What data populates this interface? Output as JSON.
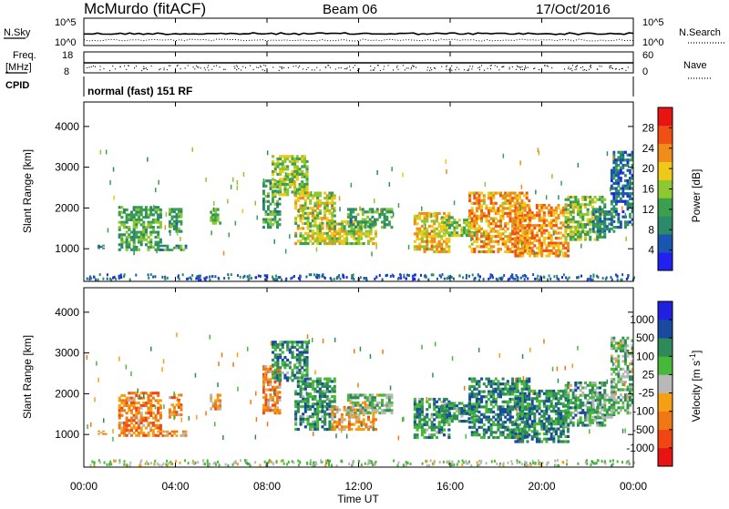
{
  "header": {
    "station": "McMurdo (fitACF)",
    "beam": "Beam 06",
    "date": "17/Oct/2016"
  },
  "noise_panel": {
    "left_label": "N.Sky",
    "right_label": "N.Search",
    "left_ticks": [
      "10^5",
      "10^0"
    ],
    "right_ticks": [
      "10^5",
      "10^0"
    ]
  },
  "freq_panel": {
    "left_label_1": "Freq.",
    "left_label_2": "[MHz]",
    "right_label": "Nave",
    "left_ticks": [
      "18",
      "8"
    ],
    "right_ticks": [
      "60",
      "0"
    ]
  },
  "cpid": {
    "label": "CPID",
    "value": "normal (fast) 151 RF"
  },
  "x_axis": {
    "label": "Time UT",
    "ticks": [
      "00:00",
      "04:00",
      "08:00",
      "12:00",
      "16:00",
      "20:00",
      "00:00"
    ]
  },
  "colors": {
    "power": [
      "#2020f0",
      "#1a55b0",
      "#2a8a6a",
      "#3aa050",
      "#8ec830",
      "#f0c81a",
      "#f08c1a",
      "#f05014",
      "#e81414"
    ],
    "velocity": [
      "#e81414",
      "#f04614",
      "#f07814",
      "#f5a014",
      "#b8b8b8",
      "#48b83a",
      "#2e8a5a",
      "#1a4aa0",
      "#2020e0"
    ]
  },
  "chart_data": [
    {
      "type": "heatmap",
      "name": "power",
      "ylabel": "Slant Range [km]",
      "yticks": [
        1000,
        2000,
        3000,
        4000
      ],
      "ylim": [
        200,
        4600
      ],
      "xlim_hours": [
        0,
        24
      ],
      "colorbar": {
        "label": "Power [dB]",
        "ticks": [
          "4",
          "8",
          "12",
          "16",
          "20",
          "24",
          "28"
        ],
        "range": [
          0,
          32
        ]
      },
      "blobs": [
        {
          "t0": 1.5,
          "t1": 3.4,
          "r0": 950,
          "r1": 2050,
          "level": 0.38
        },
        {
          "t0": 3.2,
          "t1": 4.5,
          "r0": 950,
          "r1": 1100,
          "level": 0.32
        },
        {
          "t0": 3.7,
          "t1": 4.3,
          "r0": 1400,
          "r1": 2000,
          "level": 0.35
        },
        {
          "t0": 0.6,
          "t1": 1.0,
          "r0": 1000,
          "r1": 1100,
          "level": 0.25
        },
        {
          "t0": 5.5,
          "t1": 6.0,
          "r0": 1600,
          "r1": 2000,
          "level": 0.4
        },
        {
          "t0": 7.8,
          "t1": 8.6,
          "r0": 1500,
          "r1": 2700,
          "level": 0.35
        },
        {
          "t0": 8.2,
          "t1": 9.8,
          "r0": 2300,
          "r1": 3300,
          "level": 0.5
        },
        {
          "t0": 9.2,
          "t1": 11.0,
          "r0": 1100,
          "r1": 2400,
          "level": 0.55
        },
        {
          "t0": 10.8,
          "t1": 12.8,
          "r0": 1100,
          "r1": 1700,
          "level": 0.55
        },
        {
          "t0": 11.5,
          "t1": 13.5,
          "r0": 1500,
          "r1": 2000,
          "level": 0.35
        },
        {
          "t0": 14.4,
          "t1": 16.0,
          "r0": 900,
          "r1": 1900,
          "level": 0.65
        },
        {
          "t0": 15.6,
          "t1": 17.2,
          "r0": 1300,
          "r1": 1800,
          "level": 0.5
        },
        {
          "t0": 16.8,
          "t1": 19.5,
          "r0": 900,
          "r1": 2400,
          "level": 0.72
        },
        {
          "t0": 18.8,
          "t1": 21.2,
          "r0": 800,
          "r1": 2100,
          "level": 0.75
        },
        {
          "t0": 21.0,
          "t1": 22.8,
          "r0": 1200,
          "r1": 2300,
          "level": 0.45
        },
        {
          "t0": 22.2,
          "t1": 23.2,
          "r0": 1400,
          "r1": 2000,
          "level": 0.25
        },
        {
          "t0": 23.0,
          "t1": 24.0,
          "r0": 1500,
          "r1": 3400,
          "level": 0.2
        }
      ],
      "ground_band": {
        "r0": 200,
        "r1": 400,
        "level": 0.15
      }
    },
    {
      "type": "heatmap",
      "name": "velocity",
      "ylabel": "Slant Range [km]",
      "yticks": [
        1000,
        2000,
        3000,
        4000
      ],
      "ylim": [
        200,
        4600
      ],
      "xlim_hours": [
        0,
        24
      ],
      "colorbar": {
        "label": "Velocity [m s^-1]",
        "ticks": [
          "1000",
          "500",
          "100",
          "25",
          "-25",
          "-100",
          "-500",
          "-1000"
        ],
        "range": [
          -1200,
          1200
        ]
      },
      "blobs": [
        {
          "t0": 1.5,
          "t1": 3.4,
          "r0": 950,
          "r1": 2050,
          "level": 0.28
        },
        {
          "t0": 3.2,
          "t1": 4.5,
          "r0": 950,
          "r1": 1100,
          "level": 0.32
        },
        {
          "t0": 3.7,
          "t1": 4.3,
          "r0": 1400,
          "r1": 2000,
          "level": 0.28
        },
        {
          "t0": 0.6,
          "t1": 1.0,
          "r0": 1000,
          "r1": 1100,
          "level": 0.3
        },
        {
          "t0": 5.5,
          "t1": 6.0,
          "r0": 1600,
          "r1": 2000,
          "level": 0.35
        },
        {
          "t0": 7.8,
          "t1": 8.6,
          "r0": 1500,
          "r1": 2700,
          "level": 0.3
        },
        {
          "t0": 8.2,
          "t1": 9.8,
          "r0": 2300,
          "r1": 3300,
          "level": 0.72
        },
        {
          "t0": 9.2,
          "t1": 11.0,
          "r0": 1100,
          "r1": 2400,
          "level": 0.72
        },
        {
          "t0": 10.8,
          "t1": 12.8,
          "r0": 1100,
          "r1": 1700,
          "level": 0.35
        },
        {
          "t0": 11.5,
          "t1": 13.5,
          "r0": 1500,
          "r1": 2000,
          "level": 0.6
        },
        {
          "t0": 14.4,
          "t1": 16.0,
          "r0": 900,
          "r1": 1900,
          "level": 0.72
        },
        {
          "t0": 15.6,
          "t1": 17.2,
          "r0": 1300,
          "r1": 1800,
          "level": 0.72
        },
        {
          "t0": 16.8,
          "t1": 19.5,
          "r0": 900,
          "r1": 2400,
          "level": 0.76
        },
        {
          "t0": 18.8,
          "t1": 21.2,
          "r0": 800,
          "r1": 2100,
          "level": 0.75
        },
        {
          "t0": 21.0,
          "t1": 22.8,
          "r0": 1200,
          "r1": 2300,
          "level": 0.68
        },
        {
          "t0": 22.2,
          "t1": 23.2,
          "r0": 1400,
          "r1": 2000,
          "level": 0.62
        },
        {
          "t0": 23.0,
          "t1": 24.0,
          "r0": 1500,
          "r1": 3400,
          "level": 0.6
        }
      ],
      "ground_band": {
        "r0": 200,
        "r1": 400,
        "level": 0.55
      }
    }
  ]
}
